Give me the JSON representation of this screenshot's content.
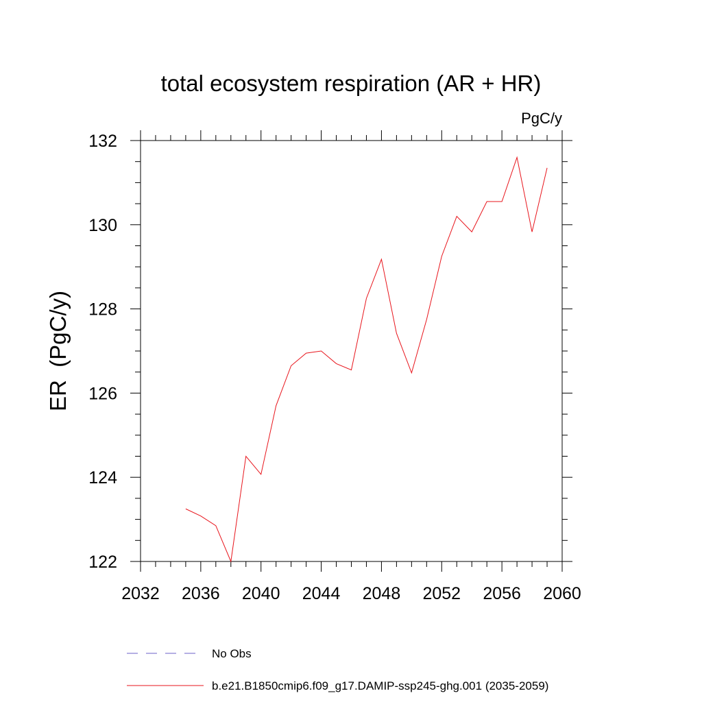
{
  "chart_data": {
    "type": "line",
    "title": "total ecosystem respiration (AR + HR)",
    "units_label": "PgC/y",
    "ylabel": "ER  (PgC/y)",
    "xlabel": "",
    "xlim": [
      2032,
      2060
    ],
    "ylim": [
      122,
      132
    ],
    "xticks": [
      2032,
      2036,
      2040,
      2044,
      2048,
      2052,
      2056,
      2060
    ],
    "yticks": [
      122,
      124,
      126,
      128,
      130,
      132
    ],
    "x_minor_step": 1,
    "y_minor_step": 0.5,
    "grid": false,
    "legend_position": "bottom",
    "series": [
      {
        "name": "No Obs",
        "color": "#6b5fc7",
        "style": "dashed",
        "x": [],
        "values": []
      },
      {
        "name": "b.e21.B1850cmip6.f09_g17.DAMIP-ssp245-ghg.001 (2035-2059)",
        "color": "#e8141b",
        "style": "solid",
        "x": [
          2035,
          2036,
          2037,
          2038,
          2039,
          2040,
          2041,
          2042,
          2043,
          2044,
          2045,
          2046,
          2047,
          2048,
          2049,
          2050,
          2051,
          2052,
          2053,
          2054,
          2055,
          2056,
          2057,
          2058,
          2059
        ],
        "values": [
          123.25,
          123.08,
          122.85,
          122.0,
          124.5,
          124.07,
          125.7,
          126.65,
          126.95,
          127.0,
          126.7,
          126.55,
          128.25,
          129.18,
          127.42,
          126.48,
          127.75,
          129.25,
          130.2,
          129.83,
          130.55,
          130.55,
          131.6,
          129.83,
          131.35
        ]
      }
    ]
  }
}
